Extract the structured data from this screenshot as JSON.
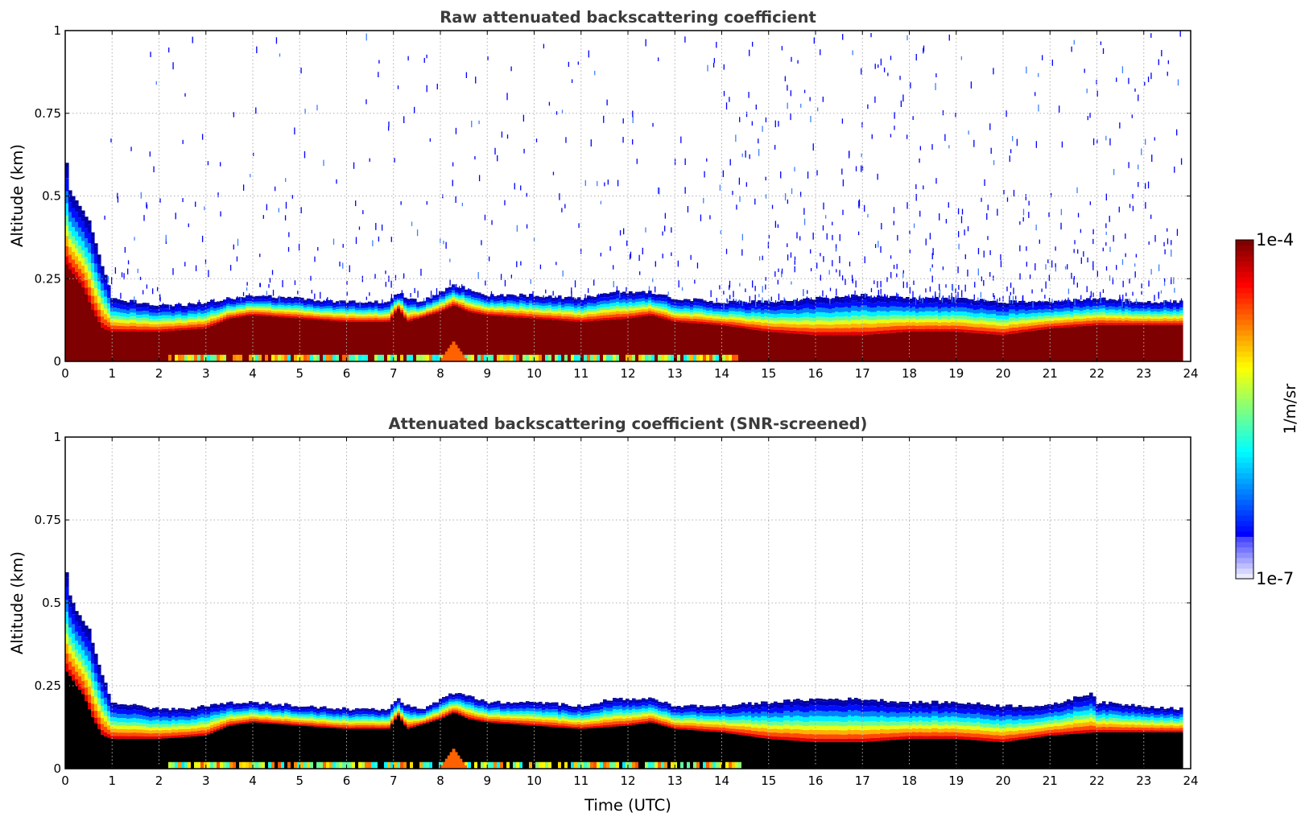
{
  "colors": {
    "jet": [
      "#00007f",
      "#0000ff",
      "#007fff",
      "#00ffff",
      "#7fff7f",
      "#ffff00",
      "#ff7f00",
      "#ff0000",
      "#7f0000"
    ],
    "screened_core": "#000000",
    "grid": "#b0b0b0",
    "title": "#3b3b3b"
  },
  "chart_data": [
    {
      "type": "heatmap",
      "title": "Raw attenuated backscattering coefficient",
      "xlabel": "",
      "ylabel": "Altitude (km)",
      "xlim": [
        0,
        24
      ],
      "ylim": [
        0,
        1
      ],
      "xticks": [
        "0",
        "1",
        "2",
        "3",
        "4",
        "5",
        "6",
        "7",
        "8",
        "9",
        "10",
        "11",
        "12",
        "13",
        "14",
        "15",
        "16",
        "17",
        "18",
        "19",
        "20",
        "21",
        "22",
        "23",
        "24"
      ],
      "yticks": [
        "0",
        "0.25",
        "0.5",
        "0.75",
        "1"
      ],
      "grid": true,
      "data_end_hour": 23.8,
      "layer_top_km": {
        "hours": [
          0,
          0.1,
          0.2,
          0.4,
          0.5,
          0.7,
          0.9,
          1.0,
          1.5,
          2.0,
          2.5,
          3.0,
          3.5,
          4.0,
          5.0,
          6.0,
          6.9,
          7.1,
          7.3,
          7.6,
          8.0,
          8.3,
          8.6,
          9.0,
          10.0,
          11.0,
          11.7,
          12.5,
          13.0,
          14.0,
          15.0,
          16.0,
          17.0,
          18.0,
          19.0,
          20.0,
          21.0,
          22.0,
          23.0,
          23.8
        ],
        "values": [
          0.64,
          0.52,
          0.49,
          0.45,
          0.43,
          0.33,
          0.24,
          0.19,
          0.18,
          0.17,
          0.17,
          0.18,
          0.19,
          0.2,
          0.19,
          0.18,
          0.18,
          0.21,
          0.19,
          0.18,
          0.21,
          0.23,
          0.22,
          0.2,
          0.2,
          0.19,
          0.21,
          0.21,
          0.19,
          0.18,
          0.18,
          0.19,
          0.2,
          0.19,
          0.19,
          0.18,
          0.18,
          0.19,
          0.18,
          0.18
        ]
      },
      "saturated_top_km": {
        "hours": [
          0,
          0.2,
          0.4,
          0.6,
          0.8,
          1.0,
          2.0,
          3.0,
          3.5,
          4.0,
          5.0,
          6.0,
          6.9,
          7.1,
          7.3,
          8.0,
          8.3,
          8.6,
          9.0,
          10.0,
          11.0,
          12.0,
          12.5,
          13.0,
          14.0,
          14.5,
          15.0,
          16.0,
          17.0,
          18.0,
          19.0,
          20.0,
          21.0,
          22.0,
          23.8
        ],
        "values": [
          0.3,
          0.26,
          0.22,
          0.15,
          0.1,
          0.09,
          0.09,
          0.1,
          0.13,
          0.14,
          0.13,
          0.12,
          0.12,
          0.16,
          0.12,
          0.15,
          0.17,
          0.15,
          0.14,
          0.13,
          0.12,
          0.13,
          0.14,
          0.12,
          0.11,
          0.1,
          0.09,
          0.08,
          0.08,
          0.09,
          0.09,
          0.08,
          0.1,
          0.11,
          0.11
        ]
      },
      "noise_level": "high",
      "colorbar": {
        "min_label": "1e-7",
        "max_label": "1e-4",
        "unit": "1/m/sr"
      }
    },
    {
      "type": "heatmap",
      "title": "Attenuated backscattering coefficient (SNR-screened)",
      "xlabel": "Time (UTC)",
      "ylabel": "Altitude (km)",
      "xlim": [
        0,
        24
      ],
      "ylim": [
        0,
        1
      ],
      "xticks": [
        "0",
        "1",
        "2",
        "3",
        "4",
        "5",
        "6",
        "7",
        "8",
        "9",
        "10",
        "11",
        "12",
        "13",
        "14",
        "15",
        "16",
        "17",
        "18",
        "19",
        "20",
        "21",
        "22",
        "23",
        "24"
      ],
      "yticks": [
        "0",
        "0.25",
        "0.5",
        "0.75",
        "1"
      ],
      "grid": true,
      "data_end_hour": 23.8,
      "layer_top_km": {
        "hours": [
          0,
          0.1,
          0.2,
          0.4,
          0.5,
          0.7,
          0.9,
          1.0,
          1.5,
          2.0,
          2.5,
          3.0,
          3.5,
          4.0,
          5.0,
          6.0,
          6.9,
          7.1,
          7.3,
          7.6,
          8.0,
          8.3,
          8.6,
          9.0,
          10.0,
          11.0,
          11.7,
          12.5,
          13.0,
          14.0,
          15.0,
          16.0,
          17.0,
          18.0,
          19.0,
          20.0,
          21.0,
          21.9,
          22.0,
          23.0,
          23.8
        ],
        "values": [
          0.63,
          0.52,
          0.49,
          0.44,
          0.43,
          0.32,
          0.24,
          0.2,
          0.19,
          0.18,
          0.18,
          0.19,
          0.2,
          0.2,
          0.19,
          0.18,
          0.18,
          0.21,
          0.19,
          0.18,
          0.21,
          0.23,
          0.22,
          0.2,
          0.2,
          0.19,
          0.21,
          0.21,
          0.19,
          0.19,
          0.2,
          0.21,
          0.21,
          0.2,
          0.2,
          0.19,
          0.19,
          0.23,
          0.2,
          0.19,
          0.18
        ]
      },
      "saturated_top_km": {
        "hours": [
          0,
          0.2,
          0.4,
          0.6,
          0.8,
          1.0,
          2.0,
          3.0,
          3.5,
          4.0,
          5.0,
          6.0,
          6.9,
          7.1,
          7.3,
          8.0,
          8.3,
          8.6,
          9.0,
          10.0,
          11.0,
          12.0,
          12.5,
          13.0,
          14.0,
          14.5,
          15.0,
          16.0,
          17.0,
          18.0,
          19.0,
          20.0,
          21.0,
          22.0,
          23.8
        ],
        "values": [
          0.3,
          0.26,
          0.22,
          0.15,
          0.1,
          0.09,
          0.09,
          0.1,
          0.13,
          0.14,
          0.13,
          0.12,
          0.12,
          0.16,
          0.12,
          0.15,
          0.17,
          0.15,
          0.14,
          0.13,
          0.12,
          0.13,
          0.14,
          0.12,
          0.11,
          0.1,
          0.09,
          0.08,
          0.08,
          0.09,
          0.09,
          0.08,
          0.1,
          0.11,
          0.11
        ]
      },
      "noise_level": "none",
      "colorbar": {
        "min_label": "1e-7",
        "max_label": "1e-4",
        "unit": "1/m/sr"
      }
    }
  ]
}
